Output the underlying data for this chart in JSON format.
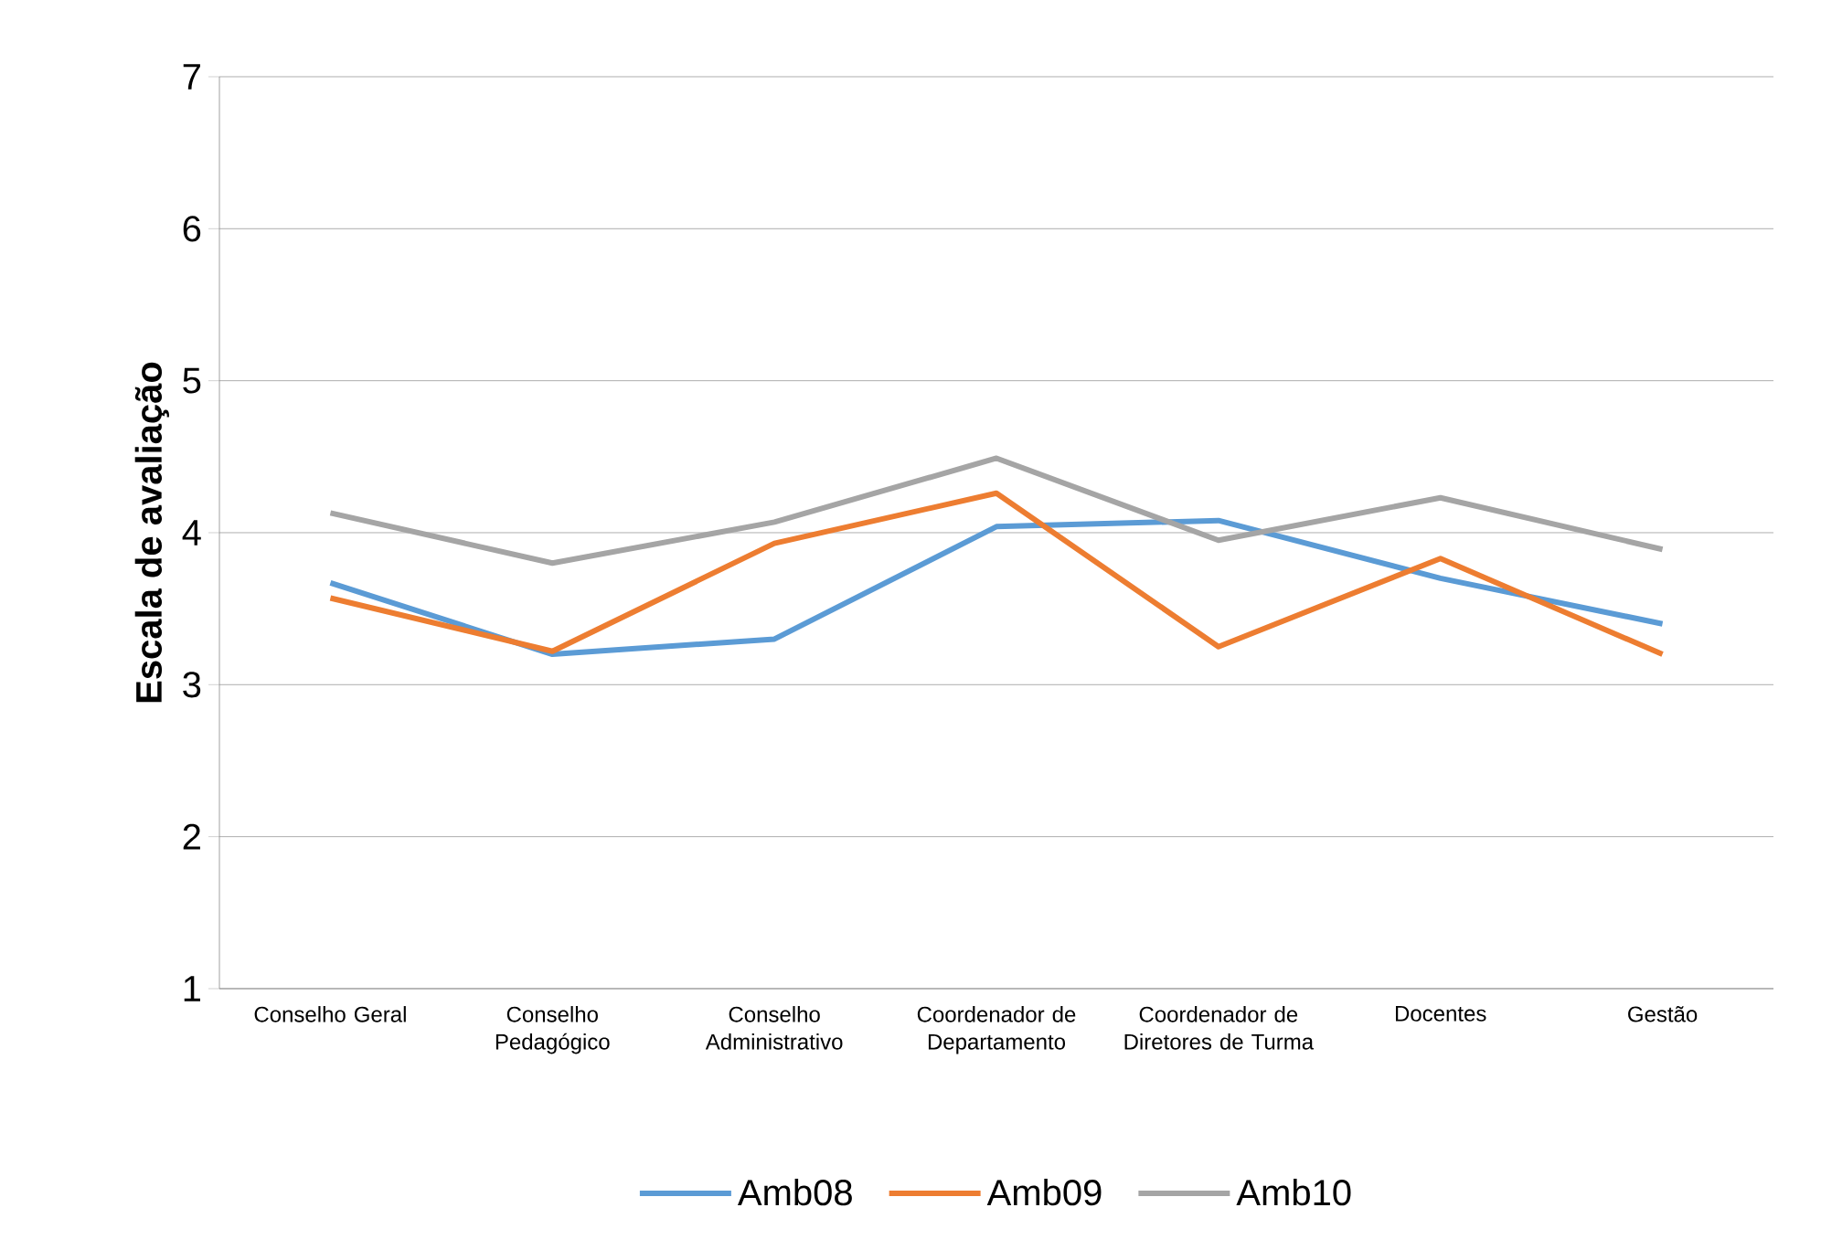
{
  "chart_data": {
    "type": "line",
    "ylabel": "Escala de avaliação",
    "categories": [
      "Conselho Geral",
      "Conselho Pedagógico",
      "Conselho Administrativo",
      "Coordenador de Departamento",
      "Coordenador de Diretores de Turma",
      "Docentes",
      "Gestão"
    ],
    "series": [
      {
        "name": "Amb08",
        "color": "#5b9bd5",
        "values": [
          3.67,
          3.2,
          3.3,
          4.04,
          4.08,
          3.7,
          3.4
        ]
      },
      {
        "name": "Amb09",
        "color": "#ed7d31",
        "values": [
          3.57,
          3.22,
          3.93,
          4.26,
          3.25,
          3.83,
          3.2
        ]
      },
      {
        "name": "Amb10",
        "color": "#a5a5a5",
        "values": [
          4.13,
          3.8,
          4.07,
          4.49,
          3.95,
          4.23,
          3.89
        ]
      }
    ],
    "ylim": [
      1,
      7
    ],
    "yticks": [
      1,
      2,
      3,
      4,
      5,
      6,
      7
    ],
    "grid": "y",
    "legend": "bottom",
    "marker": "none",
    "line_style": "solid"
  }
}
